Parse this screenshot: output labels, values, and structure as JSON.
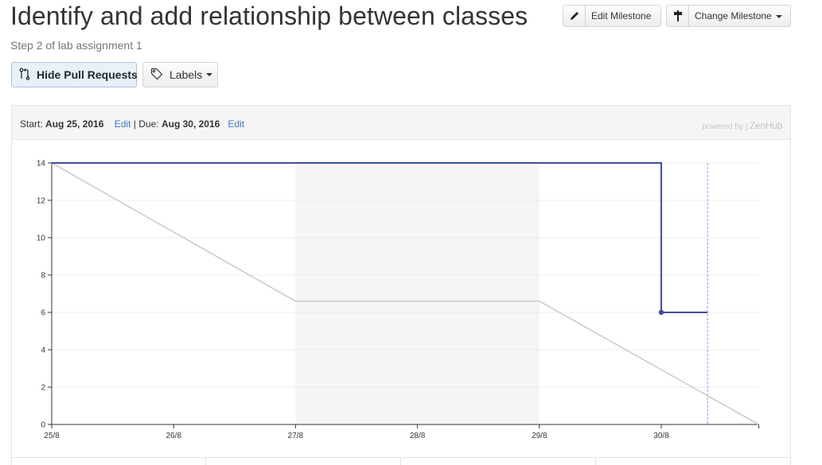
{
  "milestone": {
    "title": "Identify and add relationship between classes",
    "description": "Step 2 of lab assignment 1"
  },
  "toolbar": {
    "edit_milestone_label": "Edit Milestone",
    "change_milestone_label": "Change Milestone",
    "hide_prs_label": "Hide Pull Requests",
    "labels_label": "Labels"
  },
  "dates": {
    "start_label": "Start:",
    "start_value": "Aug 25, 2016",
    "edit_label": "Edit",
    "separator": "|",
    "due_label": "Due:",
    "due_value": "Aug 30, 2016"
  },
  "powered_by": {
    "text": "powered by |",
    "brand": "ZenHub"
  },
  "chart_data": {
    "type": "line",
    "x_tick_labels": [
      "25/8",
      "26/8",
      "27/8",
      "28/8",
      "29/8",
      "30/8"
    ],
    "y_tick_labels": [
      "0",
      "2",
      "4",
      "6",
      "8",
      "10",
      "12",
      "14"
    ],
    "ylim": [
      0,
      14
    ],
    "x_range_days": [
      0,
      5.8
    ],
    "weekend_shading_days": [
      2,
      4
    ],
    "today_marker_day": 5.38,
    "series": [
      {
        "role": "ideal",
        "color": "#cccccc",
        "points": [
          [
            0,
            14
          ],
          [
            2,
            6.6
          ],
          [
            4,
            6.6
          ],
          [
            5.8,
            0
          ]
        ]
      },
      {
        "role": "actual",
        "color": "#3f4ea0",
        "points": [
          [
            0,
            14
          ],
          [
            5,
            14
          ],
          [
            5,
            6
          ],
          [
            5.38,
            6
          ]
        ],
        "dot": [
          5,
          6
        ]
      }
    ],
    "grid": true
  }
}
